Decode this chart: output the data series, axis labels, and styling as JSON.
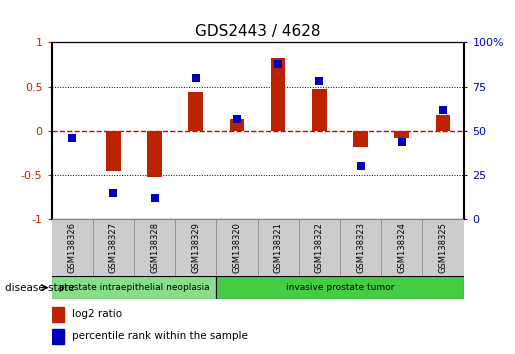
{
  "title": "GDS2443 / 4628",
  "samples": [
    "GSM138326",
    "GSM138327",
    "GSM138328",
    "GSM138329",
    "GSM138320",
    "GSM138321",
    "GSM138322",
    "GSM138323",
    "GSM138324",
    "GSM138325"
  ],
  "log2_ratio": [
    0.0,
    -0.45,
    -0.52,
    0.44,
    0.13,
    0.82,
    0.48,
    -0.18,
    -0.08,
    0.18
  ],
  "percentile": [
    46,
    15,
    12,
    80,
    57,
    88,
    78,
    30,
    44,
    62
  ],
  "bar_color": "#bb2200",
  "dot_color": "#0000bb",
  "ylim_left": [
    -1,
    1
  ],
  "ylim_right": [
    0,
    100
  ],
  "yticks_left": [
    -1,
    -0.5,
    0,
    0.5,
    1
  ],
  "ytick_labels_left": [
    "-1",
    "-0.5",
    "0",
    "0.5",
    "1"
  ],
  "yticks_right": [
    0,
    25,
    50,
    75,
    100
  ],
  "ytick_labels_right": [
    "0",
    "25",
    "50",
    "75",
    "100%"
  ],
  "hlines_dotted": [
    0.5,
    -0.5
  ],
  "hline_zero_color": "#cc0000",
  "disease_groups": [
    {
      "label": "prostate intraepithelial neoplasia",
      "start": 0,
      "end": 3,
      "color": "#88dd88"
    },
    {
      "label": "invasive prostate tumor",
      "start": 4,
      "end": 9,
      "color": "#44cc44"
    }
  ],
  "disease_state_label": "disease state",
  "legend_items": [
    {
      "label": "log2 ratio",
      "color": "#bb2200"
    },
    {
      "label": "percentile rank within the sample",
      "color": "#0000bb"
    }
  ],
  "bar_width": 0.35,
  "dot_size": 35,
  "background_color": "#ffffff",
  "tick_color_left": "#cc2200",
  "tick_color_right": "#0000cc",
  "sample_box_color": "#cccccc",
  "sample_box_edge": "#888888"
}
